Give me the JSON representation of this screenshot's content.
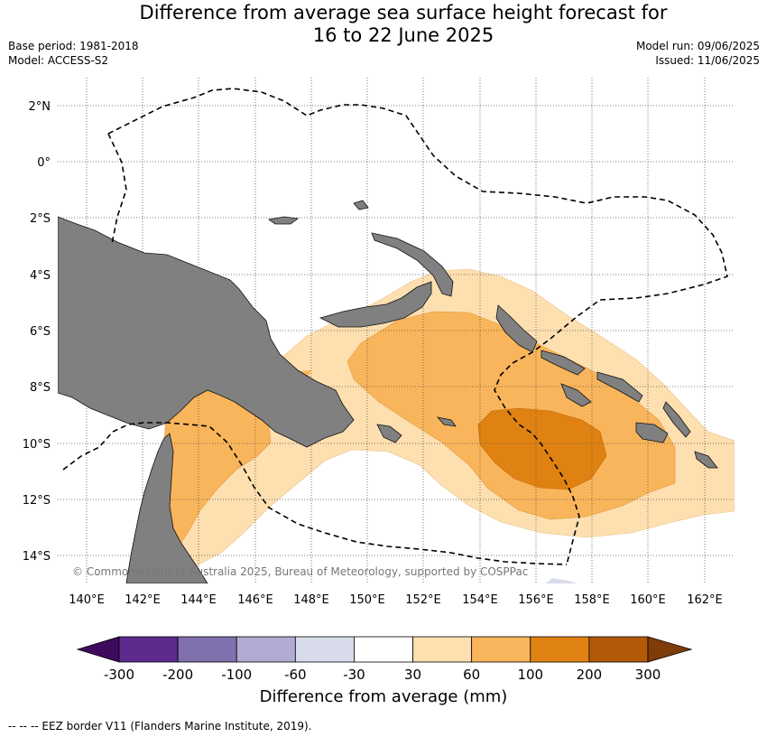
{
  "header": {
    "title_line1": "Difference from average sea surface height forecast for",
    "title_line2": "16 to 22 June 2025",
    "base_period": "Base period: 1981-2018",
    "model": "Model: ACCESS-S2",
    "model_run": "Model run: 09/06/2025",
    "issued": "Issued: 11/06/2025"
  },
  "map": {
    "lat_labels": [
      "2°N",
      "0°",
      "2°S",
      "4°S",
      "6°S",
      "8°S",
      "10°S",
      "12°S",
      "14°S"
    ],
    "lon_labels": [
      "140°E",
      "142°E",
      "144°E",
      "146°E",
      "148°E",
      "150°E",
      "152°E",
      "154°E",
      "156°E",
      "158°E",
      "160°E",
      "162°E"
    ],
    "copyright": "© Commonwealth of Australia 2025, Bureau of Meteorology, supported by COSPPac",
    "colors": {
      "land": "#808080",
      "c30_60": "#fddfb0",
      "c60_100": "#f9b55b",
      "c100_200": "#e08211",
      "grid": "#555555"
    }
  },
  "colorbar": {
    "title": "Difference from average (mm)",
    "ticks": [
      "-300",
      "-200",
      "-100",
      "-60",
      "-30",
      "30",
      "60",
      "100",
      "200",
      "300"
    ],
    "colors": [
      "#3d0a5c",
      "#5c2a8c",
      "#8070ae",
      "#b1aad2",
      "#d8dbea",
      "#ffffff",
      "#fddfb0",
      "#f9b55b",
      "#e08211",
      "#b35806",
      "#7f3b08"
    ]
  },
  "footer": {
    "legend": "--  --  -- EEZ border V11 (Flanders Marine Institute, 2019)."
  }
}
